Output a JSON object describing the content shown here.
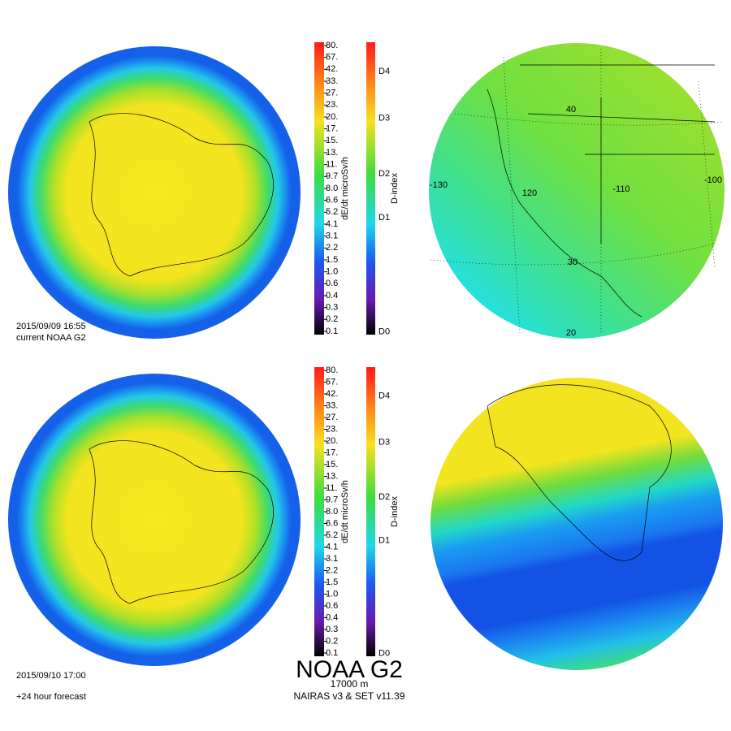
{
  "panels": [
    {
      "timestamp": "2015/09/09 16:55",
      "caption": "current NOAA G2"
    },
    {
      "timestamp": "2015/09/10 17:00",
      "caption": "+24 hour forecast"
    }
  ],
  "colorbar": {
    "label": "dE/dt microSv/h",
    "ticks": [
      "80.",
      "57.",
      "42.",
      "33.",
      "27.",
      "23.",
      "20.",
      "17.",
      "15.",
      "13.",
      "11.",
      "9.7",
      "8.0",
      "6.6",
      "5.2",
      "4.1",
      "3.1",
      "2.2",
      "1.5",
      "1.0",
      "0.6",
      "0.4",
      "0.3",
      "0.2",
      "0.1"
    ]
  },
  "dindex": {
    "label": "D-index",
    "ticks": [
      "D4",
      "D3",
      "D2",
      "D1",
      "D0"
    ]
  },
  "map_labels": [
    "40",
    "-130",
    "120",
    "-110",
    "-100",
    "30",
    "20"
  ],
  "footer": {
    "title": "NOAA G2",
    "altitude": "17000 m",
    "model": "NAIRAS v3 & SET v11.39"
  }
}
